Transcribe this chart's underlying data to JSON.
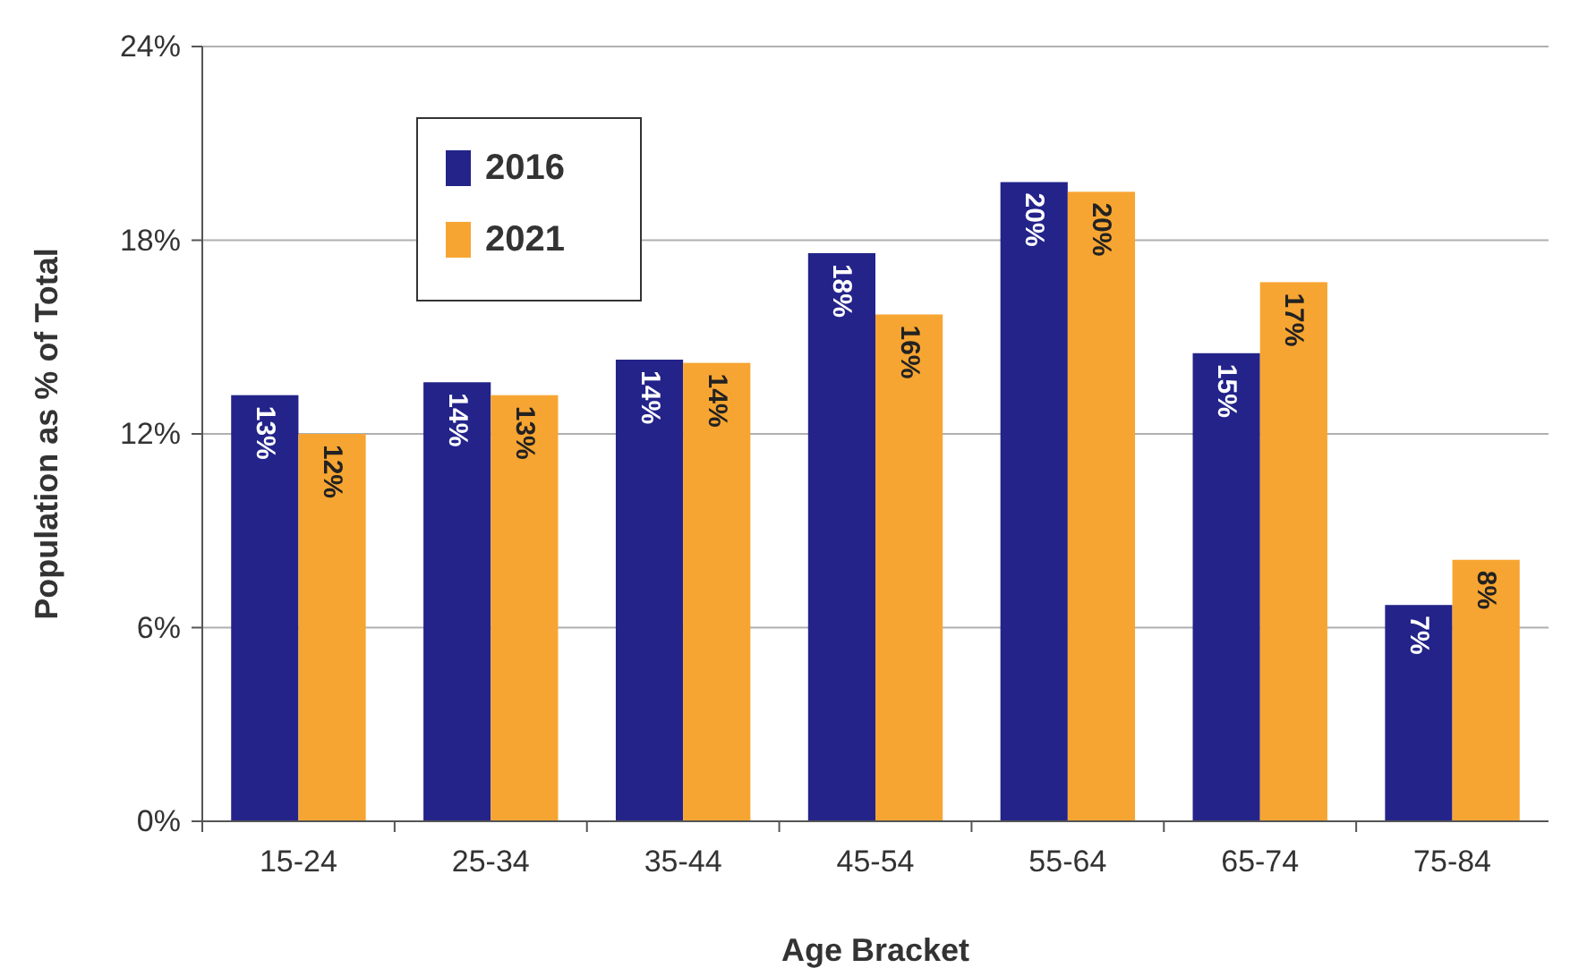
{
  "chart_data": {
    "type": "bar",
    "xlabel": "Age Bracket",
    "ylabel": "Population as % of Total",
    "categories": [
      "15-24",
      "25-34",
      "35-44",
      "45-54",
      "55-64",
      "65-74",
      "75-84"
    ],
    "series": [
      {
        "name": "2016",
        "color": "#23238a",
        "values": [
          13.2,
          13.6,
          14.3,
          17.6,
          19.8,
          14.5,
          6.7
        ],
        "value_labels": [
          "13%",
          "14%",
          "14%",
          "18%",
          "20%",
          "15%",
          "7%"
        ]
      },
      {
        "name": "2021",
        "color": "#f7a532",
        "values": [
          12.0,
          13.2,
          14.2,
          15.7,
          19.5,
          16.7,
          8.1
        ],
        "value_labels": [
          "12%",
          "13%",
          "14%",
          "16%",
          "20%",
          "17%",
          "8%"
        ]
      }
    ],
    "ylim": [
      0,
      24
    ],
    "yticks": [
      {
        "value": 0,
        "label": "0%"
      },
      {
        "value": 6,
        "label": "6%"
      },
      {
        "value": 12,
        "label": "12%"
      },
      {
        "value": 18,
        "label": "18%"
      },
      {
        "value": 24,
        "label": "24%"
      }
    ],
    "grid": "y",
    "legend": "top left"
  }
}
